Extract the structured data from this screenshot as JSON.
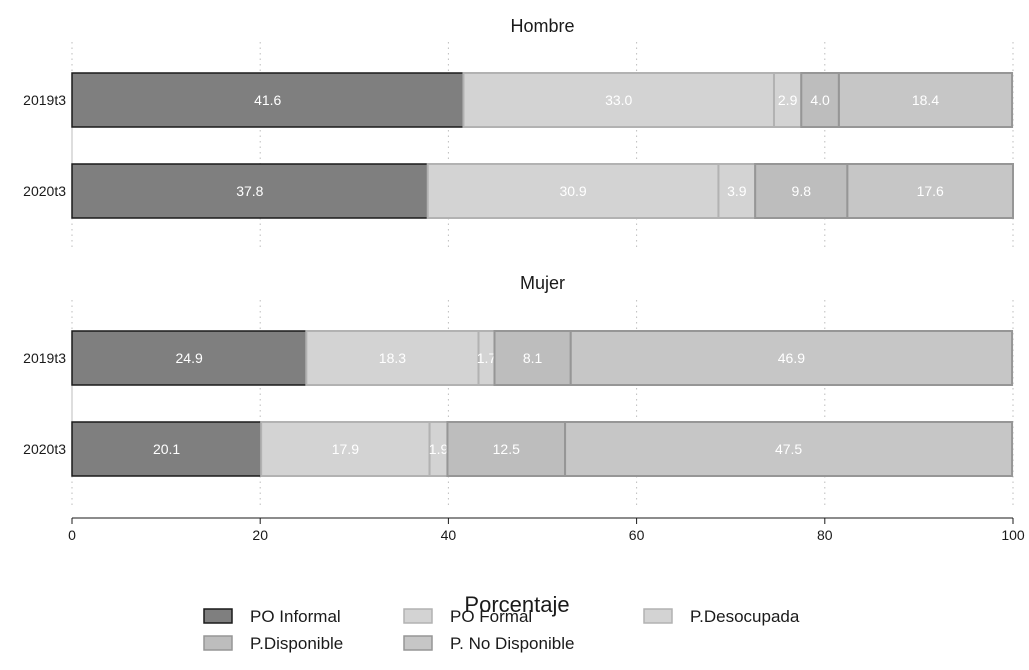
{
  "chart_data": {
    "type": "bar",
    "orientation": "horizontal",
    "stacked": true,
    "xlabel": "Porcentaje",
    "xlim": [
      0,
      100
    ],
    "xticks": [
      0,
      20,
      40,
      60,
      80,
      100
    ],
    "grid": "vertical dotted",
    "legend_position": "bottom",
    "segments": [
      "PO Informal",
      "PO Formal",
      "P.Desocupada",
      "P.Disponible",
      "P. No Disponible"
    ],
    "colors": {
      "PO Informal": "#7f7f7f",
      "PO Formal": "#d3d3d3",
      "P.Desocupada": "#d3d3d3",
      "P.Disponible": "#bdbdbd",
      "P. No Disponible": "#c6c6c6"
    },
    "edge_colors": {
      "PO Informal": "#1a1a1a",
      "PO Formal": "#b2b2b2",
      "P.Desocupada": "#b2b2b2",
      "P.Disponible": "#969696",
      "P. No Disponible": "#969696"
    },
    "panels": [
      {
        "title": "Hombre",
        "bars": [
          {
            "label": "2019t3",
            "values": [
              41.6,
              33.0,
              2.9,
              4.0,
              18.4
            ]
          },
          {
            "label": "2020t3",
            "values": [
              37.8,
              30.9,
              3.9,
              9.8,
              17.6
            ]
          }
        ]
      },
      {
        "title": "Mujer",
        "bars": [
          {
            "label": "2019t3",
            "values": [
              24.9,
              18.3,
              1.7,
              8.1,
              46.9
            ]
          },
          {
            "label": "2020t3",
            "values": [
              20.1,
              17.9,
              1.9,
              12.5,
              47.5
            ]
          }
        ]
      }
    ]
  }
}
